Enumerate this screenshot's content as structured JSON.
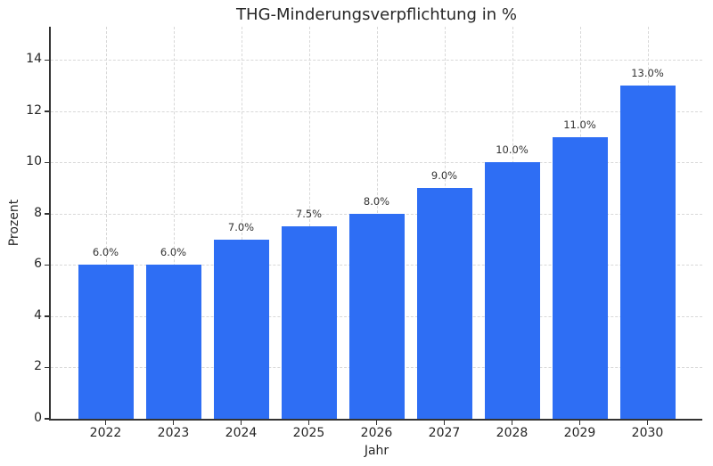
{
  "chart_data": {
    "type": "bar",
    "title": "THG-Minderungsverpflichtung in %",
    "xlabel": "Jahr",
    "ylabel": "Prozent",
    "categories": [
      "2022",
      "2023",
      "2024",
      "2025",
      "2026",
      "2027",
      "2028",
      "2029",
      "2030"
    ],
    "values": [
      6.0,
      6.0,
      7.0,
      7.5,
      8.0,
      9.0,
      10.0,
      11.0,
      13.0
    ],
    "bar_labels": [
      "6.0%",
      "6.0%",
      "7.0%",
      "7.5%",
      "8.0%",
      "9.0%",
      "10.0%",
      "11.0%",
      "13.0%"
    ],
    "yticks": [
      0,
      2,
      4,
      6,
      8,
      10,
      12,
      14
    ],
    "ylim": [
      0,
      15.3
    ],
    "grid": "dashed, horizontal and vertical",
    "legend_position": "none",
    "bar_color": "#2e6ef4",
    "grid_color": "#d8d8d8",
    "axis_color": "#333333",
    "text_color": "#262626",
    "background_color": "#ffffff"
  }
}
